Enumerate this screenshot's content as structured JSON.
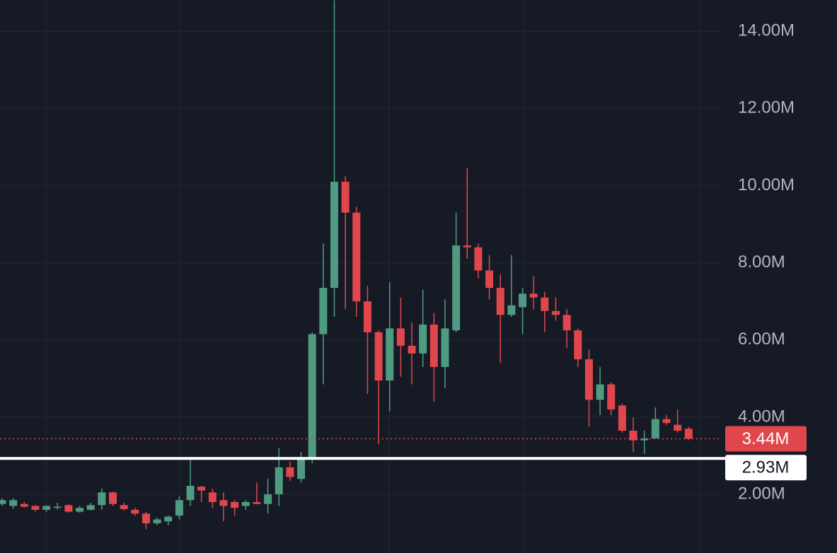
{
  "chart_data": {
    "type": "candlestick",
    "open": [
      1.75,
      1.7,
      1.75,
      1.7,
      1.6,
      1.65,
      1.72,
      1.55,
      1.6,
      1.72,
      2.05,
      1.72,
      1.6,
      1.5,
      1.25,
      1.3,
      1.45,
      1.85,
      2.2,
      2.05,
      1.85,
      1.8,
      1.7,
      1.8,
      1.75,
      2.0,
      2.7,
      2.4,
      2.95,
      6.15,
      7.35,
      10.1,
      9.3,
      7.0,
      6.2,
      4.95,
      6.3,
      5.85,
      5.65,
      6.4,
      5.3,
      6.25,
      8.45,
      8.4,
      7.8,
      7.35,
      6.65,
      6.85,
      7.2,
      7.1,
      6.75,
      6.65,
      6.25,
      5.5,
      4.45,
      4.85,
      4.3,
      3.65,
      3.4,
      3.45,
      3.95,
      3.8,
      3.7
    ],
    "high": [
      1.9,
      1.9,
      1.8,
      1.72,
      1.72,
      1.78,
      1.74,
      1.7,
      1.78,
      2.15,
      2.07,
      1.78,
      1.65,
      1.55,
      1.4,
      1.45,
      1.95,
      2.95,
      2.22,
      2.15,
      2.05,
      1.85,
      1.85,
      2.3,
      2.4,
      3.2,
      2.85,
      3.1,
      6.2,
      8.5,
      14.8,
      10.25,
      9.45,
      7.4,
      6.25,
      7.5,
      7.1,
      6.45,
      7.3,
      6.7,
      7.05,
      9.3,
      10.45,
      8.5,
      8.2,
      7.7,
      8.2,
      7.35,
      7.65,
      7.25,
      7.1,
      6.8,
      6.3,
      5.75,
      5.3,
      4.9,
      4.35,
      4.0,
      3.65,
      4.25,
      4.05,
      4.2,
      3.75
    ],
    "low": [
      1.7,
      1.62,
      1.65,
      1.55,
      1.55,
      1.6,
      1.53,
      1.52,
      1.58,
      1.6,
      1.7,
      1.58,
      1.45,
      1.1,
      1.2,
      1.2,
      1.35,
      1.7,
      1.8,
      1.65,
      1.3,
      1.45,
      1.6,
      1.75,
      1.5,
      1.7,
      2.35,
      2.3,
      2.8,
      4.85,
      6.6,
      6.8,
      6.6,
      4.6,
      3.3,
      4.15,
      5.05,
      4.85,
      5.3,
      4.4,
      4.75,
      6.2,
      8.1,
      7.6,
      7.05,
      5.4,
      6.6,
      6.15,
      6.8,
      6.2,
      6.5,
      5.8,
      5.3,
      3.75,
      4.05,
      4.05,
      3.6,
      3.1,
      3.05,
      3.45,
      3.8,
      3.6,
      3.4
    ],
    "close": [
      1.85,
      1.85,
      1.68,
      1.6,
      1.7,
      1.68,
      1.55,
      1.65,
      1.72,
      2.05,
      1.75,
      1.62,
      1.5,
      1.25,
      1.35,
      1.42,
      1.85,
      2.22,
      2.1,
      1.8,
      1.7,
      1.65,
      1.8,
      1.75,
      2.0,
      2.7,
      2.45,
      2.9,
      6.15,
      7.35,
      10.1,
      9.3,
      7.0,
      6.2,
      4.95,
      6.3,
      5.85,
      5.65,
      6.4,
      5.3,
      6.3,
      8.45,
      8.4,
      7.8,
      7.35,
      6.65,
      6.9,
      7.2,
      7.1,
      6.75,
      6.65,
      6.25,
      5.5,
      4.45,
      4.85,
      4.2,
      3.65,
      3.4,
      3.45,
      3.95,
      3.85,
      3.65,
      3.44
    ],
    "up_color": "#4f9b82",
    "down_color": "#e0474c",
    "ylim": [
      0.48,
      14.81
    ],
    "yticks": [
      {
        "value": 2,
        "label": "2.00M"
      },
      {
        "value": 4,
        "label": "4.00M"
      },
      {
        "value": 6,
        "label": "6.00M"
      },
      {
        "value": 8,
        "label": "8.00M"
      },
      {
        "value": 10,
        "label": "10.00M"
      },
      {
        "value": 12,
        "label": "12.00M"
      },
      {
        "value": 14,
        "label": "14.00M"
      }
    ],
    "grid": true,
    "last_price": {
      "value": 3.44,
      "label": "3.44M"
    },
    "horizontal_line": {
      "value": 2.93,
      "label": "2.93M"
    }
  }
}
